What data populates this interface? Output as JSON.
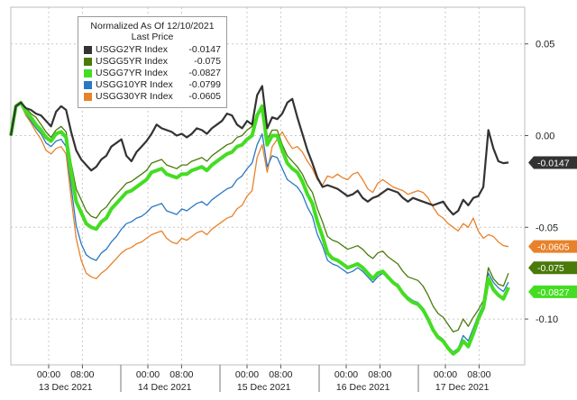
{
  "chart_data": {
    "type": "line",
    "title": "Normalized As Of 12/10/2021",
    "subtitle": "Last Price",
    "x_tick_labels": [
      "00:00",
      "08:00",
      "00:00",
      "08:00",
      "00:00",
      "08:00",
      "00:00",
      "08:00",
      "00:00",
      "08:00"
    ],
    "x_day_labels": [
      "13 Dec 2021",
      "14 Dec 2021",
      "15 Dec 2021",
      "16 Dec 2021",
      "17 Dec 2021"
    ],
    "y_tick_labels": [
      "0.05",
      "0.00",
      "-0.05",
      "-0.10"
    ],
    "ylim": [
      -0.125,
      0.07
    ],
    "grid": true,
    "legend_position": "top-left",
    "series": [
      {
        "name": "USGG2YR Index",
        "last_value_label": "-0.0147",
        "tag_label": "-0.0147",
        "color": "#333333",
        "values": [
          0,
          0.016,
          0.018,
          0.015,
          0.014,
          0.012,
          0.011,
          0.008,
          0.005,
          0.013,
          0.016,
          0.014,
          0.002,
          -0.008,
          -0.013,
          -0.016,
          -0.019,
          -0.017,
          -0.013,
          -0.011,
          -0.006,
          -0.004,
          -0.002,
          -0.011,
          -0.014,
          -0.009,
          -0.006,
          -0.003,
          0.001,
          0.006,
          0.004,
          0.003,
          0.002,
          0.0,
          0.001,
          -0.001,
          0.001,
          0.004,
          0.003,
          0.001,
          0.004,
          0.006,
          0.008,
          0.012,
          0.011,
          0.006,
          0.004,
          0.008,
          0.006,
          0.022,
          0.027,
          0.004,
          0.01,
          0.009,
          0.012,
          0.018,
          0.02,
          0.01,
          0.001,
          -0.008,
          -0.015,
          -0.023,
          -0.028,
          -0.027,
          -0.028,
          -0.029,
          -0.031,
          -0.033,
          -0.032,
          -0.03,
          -0.034,
          -0.036,
          -0.034,
          -0.033,
          -0.031,
          -0.029,
          -0.03,
          -0.031,
          -0.034,
          -0.036,
          -0.034,
          -0.035,
          -0.036,
          -0.037,
          -0.038,
          -0.037,
          -0.036,
          -0.04,
          -0.043,
          -0.041,
          -0.035,
          -0.038,
          -0.034,
          -0.033,
          -0.028,
          0.003,
          -0.007,
          -0.014,
          -0.015,
          -0.0147
        ]
      },
      {
        "name": "USGG5YR Index",
        "last_value_label": "-0.075",
        "tag_label": "-0.075",
        "color": "#4a7a0a",
        "values": [
          0,
          0.016,
          0.018,
          0.015,
          0.012,
          0.01,
          0.006,
          0.002,
          -0.001,
          0.003,
          0.005,
          0.002,
          -0.015,
          -0.029,
          -0.035,
          -0.041,
          -0.044,
          -0.045,
          -0.041,
          -0.039,
          -0.035,
          -0.032,
          -0.029,
          -0.026,
          -0.025,
          -0.023,
          -0.021,
          -0.019,
          -0.015,
          -0.014,
          -0.013,
          -0.016,
          -0.017,
          -0.018,
          -0.016,
          -0.016,
          -0.014,
          -0.013,
          -0.012,
          -0.014,
          -0.011,
          -0.009,
          -0.007,
          -0.005,
          -0.004,
          -0.001,
          0.0,
          0.003,
          0.005,
          0.012,
          0.016,
          -0.002,
          0.003,
          0.003,
          -0.005,
          -0.011,
          -0.014,
          -0.017,
          -0.021,
          -0.027,
          -0.031,
          -0.04,
          -0.047,
          -0.055,
          -0.057,
          -0.058,
          -0.06,
          -0.062,
          -0.061,
          -0.06,
          -0.062,
          -0.065,
          -0.067,
          -0.064,
          -0.063,
          -0.066,
          -0.068,
          -0.07,
          -0.074,
          -0.077,
          -0.078,
          -0.079,
          -0.082,
          -0.087,
          -0.093,
          -0.097,
          -0.099,
          -0.103,
          -0.107,
          -0.106,
          -0.1,
          -0.104,
          -0.099,
          -0.095,
          -0.09,
          -0.072,
          -0.078,
          -0.081,
          -0.082,
          -0.075
        ]
      },
      {
        "name": "USGG7YR Index",
        "last_value_label": "-0.0827",
        "tag_label": "-0.0827",
        "color": "#44dd22",
        "values": [
          0,
          0.016,
          0.018,
          0.013,
          0.01,
          0.006,
          0.003,
          -0.001,
          -0.003,
          0.001,
          0.002,
          -0.001,
          -0.02,
          -0.036,
          -0.042,
          -0.048,
          -0.05,
          -0.051,
          -0.047,
          -0.045,
          -0.04,
          -0.037,
          -0.034,
          -0.031,
          -0.03,
          -0.028,
          -0.026,
          -0.024,
          -0.02,
          -0.019,
          -0.018,
          -0.021,
          -0.022,
          -0.023,
          -0.021,
          -0.021,
          -0.019,
          -0.018,
          -0.017,
          -0.019,
          -0.016,
          -0.014,
          -0.012,
          -0.01,
          -0.009,
          -0.006,
          -0.005,
          -0.002,
          0.0,
          0.011,
          0.016,
          -0.005,
          0.0,
          0.0,
          -0.008,
          -0.015,
          -0.018,
          -0.02,
          -0.025,
          -0.032,
          -0.037,
          -0.047,
          -0.055,
          -0.064,
          -0.067,
          -0.068,
          -0.07,
          -0.072,
          -0.071,
          -0.07,
          -0.072,
          -0.075,
          -0.078,
          -0.075,
          -0.074,
          -0.077,
          -0.08,
          -0.082,
          -0.086,
          -0.089,
          -0.091,
          -0.092,
          -0.095,
          -0.1,
          -0.106,
          -0.11,
          -0.112,
          -0.116,
          -0.119,
          -0.117,
          -0.112,
          -0.115,
          -0.108,
          -0.1,
          -0.094,
          -0.078,
          -0.084,
          -0.087,
          -0.089,
          -0.0827
        ]
      },
      {
        "name": "USGG10YR Index",
        "last_value_label": "-0.0799",
        "tag_label": "",
        "color": "#2a78c4",
        "values": [
          0,
          0.016,
          0.017,
          0.012,
          0.008,
          0.004,
          0.001,
          -0.004,
          -0.006,
          -0.003,
          -0.002,
          -0.006,
          -0.028,
          -0.049,
          -0.059,
          -0.065,
          -0.067,
          -0.068,
          -0.064,
          -0.062,
          -0.058,
          -0.055,
          -0.051,
          -0.048,
          -0.047,
          -0.045,
          -0.044,
          -0.042,
          -0.039,
          -0.038,
          -0.037,
          -0.041,
          -0.042,
          -0.043,
          -0.04,
          -0.041,
          -0.039,
          -0.037,
          -0.036,
          -0.038,
          -0.035,
          -0.033,
          -0.031,
          -0.029,
          -0.028,
          -0.024,
          -0.022,
          -0.018,
          -0.015,
          -0.005,
          0.001,
          -0.017,
          -0.011,
          -0.012,
          -0.018,
          -0.024,
          -0.026,
          -0.028,
          -0.032,
          -0.039,
          -0.044,
          -0.054,
          -0.06,
          -0.068,
          -0.07,
          -0.071,
          -0.073,
          -0.075,
          -0.074,
          -0.072,
          -0.074,
          -0.077,
          -0.08,
          -0.077,
          -0.075,
          -0.078,
          -0.08,
          -0.081,
          -0.085,
          -0.088,
          -0.09,
          -0.091,
          -0.094,
          -0.099,
          -0.105,
          -0.109,
          -0.111,
          -0.115,
          -0.118,
          -0.116,
          -0.109,
          -0.112,
          -0.105,
          -0.098,
          -0.092,
          -0.075,
          -0.08,
          -0.083,
          -0.085,
          -0.0799
        ]
      },
      {
        "name": "USGG30YR Index",
        "last_value_label": "-0.0605",
        "tag_label": "-0.0605",
        "color": "#e8822a",
        "values": [
          0,
          0.016,
          0.017,
          0.011,
          0.007,
          0.002,
          -0.002,
          -0.008,
          -0.01,
          -0.007,
          -0.006,
          -0.01,
          -0.034,
          -0.056,
          -0.068,
          -0.075,
          -0.077,
          -0.078,
          -0.075,
          -0.073,
          -0.07,
          -0.067,
          -0.064,
          -0.062,
          -0.061,
          -0.059,
          -0.058,
          -0.056,
          -0.054,
          -0.053,
          -0.052,
          -0.056,
          -0.058,
          -0.059,
          -0.056,
          -0.057,
          -0.055,
          -0.053,
          -0.052,
          -0.054,
          -0.051,
          -0.049,
          -0.047,
          -0.045,
          -0.044,
          -0.04,
          -0.038,
          -0.033,
          -0.03,
          -0.012,
          -0.005,
          -0.02,
          -0.006,
          -0.002,
          0.002,
          -0.003,
          -0.007,
          -0.006,
          -0.009,
          -0.014,
          -0.018,
          -0.024,
          -0.027,
          -0.022,
          -0.023,
          -0.021,
          -0.023,
          -0.024,
          -0.021,
          -0.02,
          -0.024,
          -0.029,
          -0.031,
          -0.026,
          -0.024,
          -0.026,
          -0.028,
          -0.029,
          -0.03,
          -0.032,
          -0.031,
          -0.03,
          -0.031,
          -0.034,
          -0.039,
          -0.043,
          -0.045,
          -0.048,
          -0.05,
          -0.052,
          -0.048,
          -0.05,
          -0.045,
          -0.052,
          -0.056,
          -0.054,
          -0.055,
          -0.058,
          -0.06,
          -0.0605
        ]
      }
    ]
  }
}
